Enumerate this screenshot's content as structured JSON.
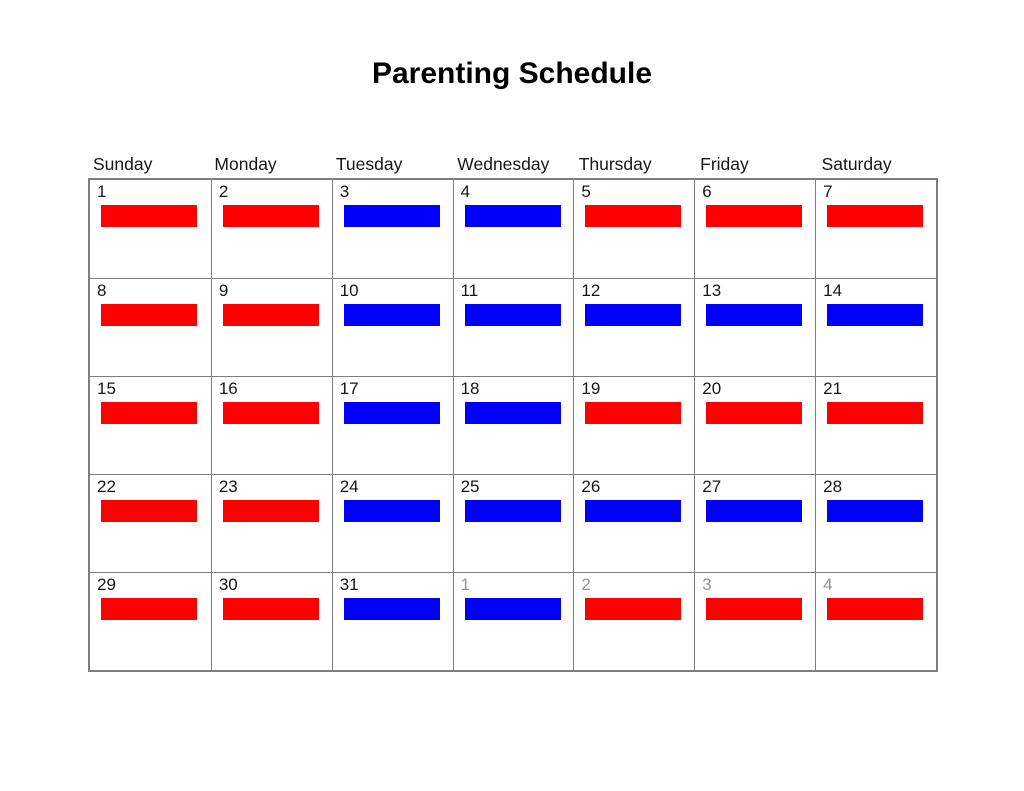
{
  "title": "Parenting Schedule",
  "weekdays": [
    "Sunday",
    "Monday",
    "Tuesday",
    "Wednesday",
    "Thursday",
    "Friday",
    "Saturday"
  ],
  "colors": {
    "red": "#FF0000",
    "blue": "#0000FB",
    "grid": "#7e7e7e",
    "day_number": "#161616",
    "outside_day_number": "#949494"
  },
  "weeks": [
    [
      {
        "day": "1",
        "color": "red",
        "outside": false
      },
      {
        "day": "2",
        "color": "red",
        "outside": false
      },
      {
        "day": "3",
        "color": "blue",
        "outside": false
      },
      {
        "day": "4",
        "color": "blue",
        "outside": false
      },
      {
        "day": "5",
        "color": "red",
        "outside": false
      },
      {
        "day": "6",
        "color": "red",
        "outside": false
      },
      {
        "day": "7",
        "color": "red",
        "outside": false
      }
    ],
    [
      {
        "day": "8",
        "color": "red",
        "outside": false
      },
      {
        "day": "9",
        "color": "red",
        "outside": false
      },
      {
        "day": "10",
        "color": "blue",
        "outside": false
      },
      {
        "day": "11",
        "color": "blue",
        "outside": false
      },
      {
        "day": "12",
        "color": "blue",
        "outside": false
      },
      {
        "day": "13",
        "color": "blue",
        "outside": false
      },
      {
        "day": "14",
        "color": "blue",
        "outside": false
      }
    ],
    [
      {
        "day": "15",
        "color": "red",
        "outside": false
      },
      {
        "day": "16",
        "color": "red",
        "outside": false
      },
      {
        "day": "17",
        "color": "blue",
        "outside": false
      },
      {
        "day": "18",
        "color": "blue",
        "outside": false
      },
      {
        "day": "19",
        "color": "red",
        "outside": false
      },
      {
        "day": "20",
        "color": "red",
        "outside": false
      },
      {
        "day": "21",
        "color": "red",
        "outside": false
      }
    ],
    [
      {
        "day": "22",
        "color": "red",
        "outside": false
      },
      {
        "day": "23",
        "color": "red",
        "outside": false
      },
      {
        "day": "24",
        "color": "blue",
        "outside": false
      },
      {
        "day": "25",
        "color": "blue",
        "outside": false
      },
      {
        "day": "26",
        "color": "blue",
        "outside": false
      },
      {
        "day": "27",
        "color": "blue",
        "outside": false
      },
      {
        "day": "28",
        "color": "blue",
        "outside": false
      }
    ],
    [
      {
        "day": "29",
        "color": "red",
        "outside": false
      },
      {
        "day": "30",
        "color": "red",
        "outside": false
      },
      {
        "day": "31",
        "color": "blue",
        "outside": false
      },
      {
        "day": "1",
        "color": "blue",
        "outside": true
      },
      {
        "day": "2",
        "color": "red",
        "outside": true
      },
      {
        "day": "3",
        "color": "red",
        "outside": true
      },
      {
        "day": "4",
        "color": "red",
        "outside": true
      }
    ]
  ]
}
